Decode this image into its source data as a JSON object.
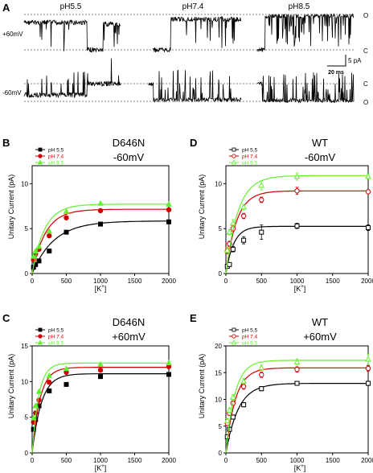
{
  "panel_a": {
    "letter": "A",
    "ph_labels": [
      "pH5.5",
      "pH7.4",
      "pH8.5"
    ],
    "voltages": [
      "+60mV",
      "-60mV"
    ],
    "level_labels_top": [
      "O",
      "C"
    ],
    "level_labels_bottom": [
      "C",
      "O"
    ],
    "scale_current": "5 pA",
    "scale_time": "20 ms"
  },
  "chart_data": [
    {
      "type": "scatter",
      "panel": "B",
      "title": "D646N",
      "subtitle": "-60mV",
      "xlabel": "[K+]",
      "ylabel": "Unitary Current (pA)",
      "xlim": [
        0,
        2000
      ],
      "ylim": [
        0,
        12
      ],
      "xticks": [
        0,
        500,
        1000,
        1500,
        2000
      ],
      "yticks": [
        0,
        5,
        10
      ],
      "marker_fill": "filled",
      "legend_position": "top-left",
      "x": [
        20,
        50,
        100,
        250,
        500,
        1000,
        2000
      ],
      "series": [
        {
          "name": "pH 5.5",
          "color": "#000000",
          "marker": "square",
          "values": [
            0.7,
            1.0,
            1.4,
            2.5,
            4.6,
            5.5,
            5.75
          ],
          "fit_max": 5.85,
          "fit_k": 320
        },
        {
          "name": "pH 7.4",
          "color": "#cc0000",
          "marker": "circle",
          "values": [
            1.5,
            2.2,
            2.7,
            4.2,
            6.2,
            7.0,
            7.1
          ],
          "fit_max": 7.15,
          "fit_k": 195
        },
        {
          "name": "pH 8.5",
          "color": "#66ee33",
          "marker": "triangle",
          "values": [
            1.9,
            2.5,
            3.0,
            4.7,
            6.9,
            7.8,
            7.7
          ],
          "fit_max": 7.72,
          "fit_k": 180
        }
      ]
    },
    {
      "type": "scatter",
      "panel": "C",
      "title": "D646N",
      "subtitle": "+60mV",
      "xlabel": "[K+]",
      "ylabel": "Unitary Current (pA)",
      "xlim": [
        0,
        2000
      ],
      "ylim": [
        0,
        15
      ],
      "xticks": [
        0,
        500,
        1000,
        1500,
        2000
      ],
      "yticks": [
        0,
        5,
        10,
        15
      ],
      "marker_fill": "filled",
      "legend_position": "top-left",
      "x": [
        20,
        50,
        100,
        250,
        500,
        1000,
        2000
      ],
      "series": [
        {
          "name": "pH 5.5",
          "color": "#000000",
          "marker": "square",
          "values": [
            3.3,
            4.7,
            6.6,
            8.7,
            9.6,
            10.7,
            11.0
          ],
          "fit_max": 11.1,
          "fit_k": 135
        },
        {
          "name": "pH 7.4",
          "color": "#cc0000",
          "marker": "circle",
          "values": [
            4.3,
            5.6,
            7.4,
            9.9,
            11.3,
            11.6,
            12.1
          ],
          "fit_max": 12.0,
          "fit_k": 115
        },
        {
          "name": "pH 8.5",
          "color": "#66ee33",
          "marker": "triangle",
          "values": [
            4.9,
            6.6,
            8.6,
            10.8,
            11.8,
            12.4,
            12.6
          ],
          "fit_max": 12.6,
          "fit_k": 95
        }
      ]
    },
    {
      "type": "scatter",
      "panel": "D",
      "title": "WT",
      "subtitle": "-60mV",
      "xlabel": "[K+]",
      "ylabel": "Unitary Current (pA)",
      "xlim": [
        0,
        2000
      ],
      "ylim": [
        0,
        12
      ],
      "xticks": [
        0,
        500,
        1000,
        1500,
        2000
      ],
      "yticks": [
        0,
        5,
        10
      ],
      "marker_fill": "open",
      "legend_position": "top-left",
      "x": [
        20,
        50,
        100,
        250,
        500,
        1000,
        2000
      ],
      "series": [
        {
          "name": "pH 5.5",
          "color": "#000000",
          "marker": "square",
          "values": [
            0.8,
            1.0,
            2.7,
            3.7,
            4.6,
            5.3,
            5.1
          ],
          "errors": [
            0.2,
            0.2,
            0.3,
            0.4,
            0.8,
            0.3,
            0.3
          ],
          "fit_max": 5.25,
          "fit_k": 110
        },
        {
          "name": "pH 7.4",
          "color": "#cc0000",
          "marker": "circle",
          "values": [
            2.5,
            3.3,
            5.0,
            6.4,
            8.2,
            9.2,
            9.1
          ],
          "errors": [
            0.3,
            0.3,
            0.3,
            0.3,
            0.3,
            0.4,
            0.2
          ],
          "fit_max": 9.2,
          "fit_k": 150
        },
        {
          "name": "pH 8.5",
          "color": "#66ee33",
          "marker": "triangle",
          "values": [
            2.6,
            4.6,
            5.6,
            7.4,
            9.8,
            10.8,
            10.8
          ],
          "errors": [
            0.3,
            0.3,
            0.4,
            0.3,
            0.5,
            0.4,
            0.3
          ],
          "fit_max": 10.9,
          "fit_k": 170
        }
      ]
    },
    {
      "type": "scatter",
      "panel": "E",
      "title": "WT",
      "subtitle": "+60mV",
      "xlabel": "[K+]",
      "ylabel": "Unitary Current (pA)",
      "xlim": [
        0,
        2000
      ],
      "ylim": [
        0,
        20
      ],
      "xticks": [
        0,
        500,
        1000,
        1500,
        2000
      ],
      "yticks": [
        0,
        5,
        10,
        15,
        20
      ],
      "marker_fill": "open",
      "legend_position": "top-left",
      "x": [
        20,
        50,
        100,
        250,
        500,
        1000,
        2000
      ],
      "series": [
        {
          "name": "pH 5.5",
          "color": "#000000",
          "marker": "square",
          "values": [
            3.0,
            4.4,
            6.7,
            9.0,
            12.0,
            13.0,
            13.0
          ],
          "errors": [
            0.4,
            0.4,
            0.4,
            0.4,
            0.4,
            0.3,
            0.4
          ],
          "fit_max": 13.0,
          "fit_k": 175
        },
        {
          "name": "pH 7.4",
          "color": "#cc0000",
          "marker": "circle",
          "values": [
            5.5,
            7.4,
            9.3,
            12.4,
            14.6,
            15.6,
            15.8
          ],
          "errors": [
            0.4,
            0.4,
            0.4,
            0.5,
            0.5,
            0.5,
            0.5
          ],
          "fit_max": 15.9,
          "fit_k": 135
        },
        {
          "name": "pH 8.5",
          "color": "#66ee33",
          "marker": "triangle",
          "values": [
            6.0,
            8.0,
            10.4,
            13.4,
            15.9,
            17.0,
            17.5
          ],
          "errors": [
            0.4,
            0.4,
            0.5,
            0.5,
            0.5,
            0.6,
            1.0
          ],
          "fit_max": 17.3,
          "fit_k": 125
        }
      ]
    }
  ]
}
